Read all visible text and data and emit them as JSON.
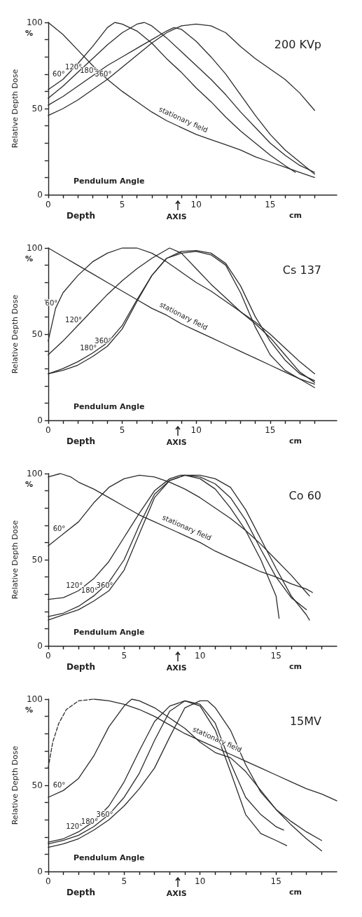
{
  "chart_data": [
    {
      "type": "line",
      "title": "200 KVp",
      "xlabel": "Depth",
      "ylabel": "Relative Depth Dose",
      "xlim": [
        0,
        19.5
      ],
      "ylim": [
        0,
        100
      ],
      "xticks": [
        0,
        {
          "value": 1,
          "label": null
        },
        {
          "value": 2,
          "label": null
        },
        {
          "value": 3,
          "label": null
        },
        {
          "value": 4,
          "label": null
        },
        5,
        {
          "value": 6,
          "label": null
        },
        {
          "value": 7,
          "label": null
        },
        {
          "value": 8,
          "label": null
        },
        {
          "value": 9,
          "label": null
        },
        10,
        {
          "value": 11,
          "label": null
        },
        {
          "value": 12,
          "label": null
        },
        {
          "value": 13,
          "label": null
        },
        {
          "value": 14,
          "label": null
        },
        15,
        {
          "value": 16,
          "label": null
        },
        {
          "value": 17,
          "label": null
        },
        {
          "value": 18,
          "label": null
        }
      ],
      "yticks": [
        0,
        {
          "value": 10,
          "label": null
        },
        {
          "value": 20,
          "label": null
        },
        {
          "value": 30,
          "label": null
        },
        {
          "value": 40,
          "label": null
        },
        50,
        {
          "value": 60,
          "label": null
        },
        {
          "value": 70,
          "label": null
        },
        {
          "value": 80,
          "label": null
        },
        {
          "value": 90,
          "label": null
        },
        100
      ],
      "annotations": [
        "%",
        "Pendulum Angle",
        "cm",
        "AXIS"
      ],
      "series": [
        {
          "name": "60°",
          "color": "#2b2b2b",
          "x": [
            0,
            1,
            2,
            3,
            4,
            4.5,
            5,
            6,
            7,
            8,
            9,
            10,
            11,
            12,
            13,
            14,
            15,
            16,
            16.7
          ],
          "values": [
            61,
            67,
            76,
            86,
            97,
            100,
            99,
            95,
            88,
            79,
            71,
            62,
            54,
            45,
            37,
            30,
            23,
            17,
            13
          ]
        },
        {
          "name": "120°",
          "color": "#2b2b2b",
          "x": [
            0,
            1,
            2,
            3,
            4,
            5,
            6,
            6.5,
            7,
            8,
            9,
            10,
            11,
            12,
            13,
            14,
            15,
            16,
            17,
            18
          ],
          "values": [
            56,
            63,
            71,
            79,
            87,
            94,
            99,
            100,
            98,
            91,
            83,
            75,
            67,
            58,
            48,
            39,
            30,
            23,
            17,
            13
          ]
        },
        {
          "name": "180°",
          "color": "#2b2b2b",
          "x": [
            0,
            1,
            2,
            3,
            4,
            5,
            6,
            7,
            8,
            8.5,
            9,
            10,
            11,
            12,
            13,
            14,
            15,
            16,
            17,
            18
          ],
          "values": [
            52,
            57,
            63,
            69,
            75,
            80,
            85,
            90,
            95,
            97,
            96,
            89,
            80,
            70,
            58,
            46,
            35,
            26,
            19,
            12
          ]
        },
        {
          "name": "360°",
          "color": "#2b2b2b",
          "x": [
            0,
            1,
            2,
            3,
            4,
            5,
            6,
            7,
            8,
            9,
            10,
            11,
            12,
            13,
            14,
            15,
            16,
            17,
            18
          ],
          "values": [
            46,
            50,
            55,
            61,
            67,
            74,
            81,
            88,
            94,
            98,
            99,
            98,
            94,
            86,
            79,
            73,
            67,
            59,
            49
          ]
        },
        {
          "name": "stationary field",
          "color": "#2b2b2b",
          "x": [
            0,
            1,
            2,
            3,
            4,
            5,
            6,
            7,
            8,
            9,
            10,
            11,
            12,
            13,
            14,
            15,
            16,
            17,
            18
          ],
          "values": [
            100,
            93,
            84,
            75,
            67,
            60,
            54,
            48,
            43,
            39,
            35,
            32,
            29,
            26,
            22,
            19,
            16,
            13,
            10
          ]
        }
      ]
    },
    {
      "type": "line",
      "title": "Cs 137",
      "xlabel": "Depth",
      "ylabel": "Relative Depth Dose",
      "xlim": [
        0,
        19.5
      ],
      "ylim": [
        0,
        100
      ],
      "xticks": [
        0,
        {
          "value": 1,
          "label": null
        },
        {
          "value": 2,
          "label": null
        },
        {
          "value": 3,
          "label": null
        },
        {
          "value": 4,
          "label": null
        },
        5,
        {
          "value": 6,
          "label": null
        },
        {
          "value": 7,
          "label": null
        },
        {
          "value": 8,
          "label": null
        },
        {
          "value": 9,
          "label": null
        },
        10,
        {
          "value": 11,
          "label": null
        },
        {
          "value": 12,
          "label": null
        },
        {
          "value": 13,
          "label": null
        },
        {
          "value": 14,
          "label": null
        },
        15,
        {
          "value": 16,
          "label": null
        },
        {
          "value": 17,
          "label": null
        },
        {
          "value": 18,
          "label": null
        }
      ],
      "yticks": [
        0,
        {
          "value": 10,
          "label": null
        },
        {
          "value": 20,
          "label": null
        },
        {
          "value": 30,
          "label": null
        },
        {
          "value": 40,
          "label": null
        },
        50,
        {
          "value": 60,
          "label": null
        },
        {
          "value": 70,
          "label": null
        },
        {
          "value": 80,
          "label": null
        },
        {
          "value": 90,
          "label": null
        },
        100
      ],
      "annotations": [
        "%",
        "Pendulum Angle",
        "cm",
        "AXIS"
      ],
      "series": [
        {
          "name": "60°",
          "color": "#2b2b2b",
          "x": [
            0,
            0.5,
            1,
            2,
            3,
            4,
            5,
            6,
            7,
            8,
            9,
            10,
            11,
            12,
            13,
            14,
            15,
            16,
            17,
            18
          ],
          "values": [
            46,
            65,
            74,
            84,
            92,
            97,
            100,
            100,
            97,
            92,
            86,
            80,
            75,
            69,
            63,
            57,
            50,
            42,
            34,
            27
          ]
        },
        {
          "name": "120°",
          "color": "#2b2b2b",
          "x": [
            0,
            1,
            2,
            3,
            4,
            5,
            6,
            7,
            8,
            8.2,
            9,
            10,
            11,
            12,
            13,
            14,
            15,
            16,
            17,
            18
          ],
          "values": [
            38,
            46,
            55,
            64,
            73,
            81,
            88,
            94,
            99,
            100,
            97,
            88,
            79,
            71,
            63,
            56,
            48,
            38,
            28,
            22
          ]
        },
        {
          "name": "180°",
          "color": "#2b2b2b",
          "x": [
            0,
            1,
            2,
            3,
            4,
            5,
            6,
            7,
            8,
            9,
            10,
            11,
            12,
            13,
            14,
            15,
            16,
            17,
            18
          ],
          "values": [
            27,
            30,
            34,
            39,
            45,
            55,
            70,
            84,
            94,
            98,
            98.5,
            97,
            91,
            78,
            60,
            46,
            35,
            27,
            23
          ]
        },
        {
          "name": "360°",
          "color": "#2b2b2b",
          "x": [
            0,
            1,
            2,
            3,
            4,
            5,
            6,
            7,
            8,
            9,
            10,
            11,
            12,
            13,
            14,
            15,
            16,
            17,
            18
          ],
          "values": [
            27,
            29,
            32,
            37,
            43,
            53,
            69,
            84,
            94,
            97,
            98,
            96,
            90,
            74,
            54,
            38,
            29,
            24,
            21
          ]
        },
        {
          "name": "stationary field",
          "color": "#2b2b2b",
          "x": [
            0,
            1,
            2,
            3,
            4,
            5,
            6,
            7,
            8,
            9,
            10,
            11,
            12,
            13,
            14,
            15,
            16,
            17,
            18
          ],
          "values": [
            100,
            95,
            90,
            85,
            80,
            75,
            70,
            65,
            61,
            56,
            52,
            48,
            44,
            40,
            36,
            32,
            28,
            24,
            19
          ]
        }
      ]
    },
    {
      "type": "line",
      "title": "Co 60",
      "xlabel": "Depth",
      "ylabel": "Relative Depth Dose",
      "xlim": [
        0,
        19
      ],
      "ylim": [
        0,
        100
      ],
      "xticks": [
        0,
        {
          "value": 1,
          "label": null
        },
        {
          "value": 2,
          "label": null
        },
        {
          "value": 3,
          "label": null
        },
        {
          "value": 4,
          "label": null
        },
        5,
        {
          "value": 6,
          "label": null
        },
        {
          "value": 7,
          "label": null
        },
        {
          "value": 8,
          "label": null
        },
        {
          "value": 9,
          "label": null
        },
        10,
        {
          "value": 11,
          "label": null
        },
        {
          "value": 12,
          "label": null
        },
        {
          "value": 13,
          "label": null
        },
        {
          "value": 14,
          "label": null
        },
        15,
        {
          "value": 16,
          "label": null
        },
        {
          "value": 17,
          "label": null
        },
        {
          "value": 18,
          "label": null
        }
      ],
      "yticks": [
        0,
        {
          "value": 10,
          "label": null
        },
        {
          "value": 20,
          "label": null
        },
        {
          "value": 30,
          "label": null
        },
        {
          "value": 40,
          "label": null
        },
        50,
        {
          "value": 60,
          "label": null
        },
        {
          "value": 70,
          "label": null
        },
        {
          "value": 80,
          "label": null
        },
        {
          "value": 90,
          "label": null
        },
        100
      ],
      "annotations": [
        "%",
        "Pendulum Angle",
        "cm",
        "AXIS"
      ],
      "series": [
        {
          "name": "60°",
          "color": "#2b2b2b",
          "x": [
            0,
            1,
            2,
            3,
            4,
            5,
            6,
            7,
            8,
            9,
            10,
            11,
            12,
            13,
            14,
            15,
            16,
            17,
            17.2
          ],
          "values": [
            58,
            65,
            72,
            83,
            92,
            97,
            99,
            98,
            95,
            91,
            86,
            80,
            74,
            67,
            59,
            50,
            41,
            31,
            29
          ]
        },
        {
          "name": "120°",
          "color": "#2b2b2b",
          "x": [
            0,
            1,
            2,
            3,
            4,
            5,
            6,
            7,
            8,
            8.7,
            9,
            10,
            11,
            12,
            13,
            14,
            15,
            15.2
          ],
          "values": [
            27,
            28,
            32,
            39,
            49,
            63,
            77,
            90,
            97,
            99,
            99,
            97,
            91,
            80,
            67,
            50,
            29,
            16
          ]
        },
        {
          "name": "180°",
          "color": "#2b2b2b",
          "x": [
            0,
            1,
            2,
            3,
            4,
            5,
            6,
            7,
            8,
            9,
            10,
            11,
            12,
            13,
            14,
            15,
            16,
            17
          ],
          "values": [
            17,
            19,
            23,
            29,
            37,
            50,
            70,
            88,
            96,
            99,
            98,
            94,
            86,
            73,
            56,
            40,
            28,
            21
          ]
        },
        {
          "name": "360°",
          "color": "#2b2b2b",
          "x": [
            0,
            1,
            2,
            3,
            4,
            5,
            6,
            7,
            8,
            9,
            10,
            11,
            12,
            13,
            14,
            15,
            16,
            17,
            17.2
          ],
          "values": [
            15,
            18,
            21,
            26,
            32,
            44,
            65,
            86,
            96,
            99,
            99,
            97,
            92,
            79,
            62,
            45,
            29,
            18,
            15
          ]
        },
        {
          "name": "stationary field",
          "color": "#2b2b2b",
          "x": [
            0,
            0.8,
            1.5,
            2,
            3,
            4,
            5,
            6,
            7,
            8,
            9,
            10,
            11,
            12,
            13,
            14,
            15,
            16,
            17,
            17.4
          ],
          "values": [
            98,
            100,
            98,
            95,
            91,
            86,
            81,
            76,
            72,
            68,
            64,
            60,
            55,
            51,
            47,
            43,
            40,
            36,
            33,
            31
          ]
        }
      ]
    },
    {
      "type": "line",
      "title": "15MV",
      "xlabel": "Depth",
      "ylabel": "Relative Depth Dose",
      "xlim": [
        0,
        19
      ],
      "ylim": [
        0,
        100
      ],
      "xticks": [
        0,
        {
          "value": 1,
          "label": null
        },
        {
          "value": 2,
          "label": null
        },
        {
          "value": 3,
          "label": null
        },
        {
          "value": 4,
          "label": null
        },
        5,
        {
          "value": 6,
          "label": null
        },
        {
          "value": 7,
          "label": null
        },
        {
          "value": 8,
          "label": null
        },
        {
          "value": 9,
          "label": null
        },
        10,
        {
          "value": 11,
          "label": null
        },
        {
          "value": 12,
          "label": null
        },
        {
          "value": 13,
          "label": null
        },
        {
          "value": 14,
          "label": null
        },
        15,
        {
          "value": 16,
          "label": null
        },
        {
          "value": 17,
          "label": null
        },
        {
          "value": 18,
          "label": null
        }
      ],
      "yticks": [
        0,
        {
          "value": 10,
          "label": null
        },
        {
          "value": 20,
          "label": null
        },
        {
          "value": 30,
          "label": null
        },
        {
          "value": 40,
          "label": null
        },
        50,
        {
          "value": 60,
          "label": null
        },
        {
          "value": 70,
          "label": null
        },
        {
          "value": 80,
          "label": null
        },
        {
          "value": 90,
          "label": null
        },
        100
      ],
      "annotations": [
        "%",
        "Pendulum Angle",
        "cm",
        "AXIS"
      ],
      "series": [
        {
          "name": "60°",
          "color": "#2b2b2b",
          "x": [
            0,
            1,
            2,
            3,
            4,
            5,
            5.5,
            6,
            7,
            8,
            9,
            10,
            11,
            12,
            13,
            14,
            15,
            16,
            17,
            18
          ],
          "values": [
            43,
            47,
            54,
            67,
            84,
            96,
            100,
            99,
            95,
            89,
            83,
            75,
            69,
            66,
            58,
            47,
            36,
            27,
            19,
            12
          ]
        },
        {
          "name": "120°",
          "color": "#2b2b2b",
          "x": [
            0,
            1,
            2,
            3,
            4,
            5,
            6,
            7,
            8,
            9,
            10,
            11,
            12,
            13,
            14,
            15,
            15.5
          ],
          "values": [
            17,
            19,
            23,
            29,
            38,
            52,
            70,
            87,
            96,
            99,
            97,
            86,
            63,
            43,
            33,
            26,
            24
          ]
        },
        {
          "name": "180°",
          "color": "#2b2b2b",
          "x": [
            0,
            1,
            2,
            3,
            4,
            5,
            6,
            7,
            8,
            9,
            10,
            11,
            12,
            13,
            14,
            15,
            15.7
          ],
          "values": [
            16,
            18,
            21,
            26,
            33,
            43,
            57,
            76,
            93,
            99,
            96,
            82,
            58,
            33,
            22,
            18,
            15
          ]
        },
        {
          "name": "360°",
          "color": "#2b2b2b",
          "x": [
            0,
            1,
            2,
            3,
            4,
            5,
            6,
            7,
            8,
            9,
            10,
            10.5,
            11,
            12,
            13,
            14,
            15,
            16,
            17,
            18
          ],
          "values": [
            14,
            16,
            19,
            24,
            30,
            38,
            48,
            60,
            78,
            95,
            99,
            99,
            95,
            82,
            62,
            46,
            36,
            29,
            23,
            18
          ]
        },
        {
          "name": "stationary field",
          "color": "#2b2b2b",
          "x": [
            3,
            4,
            5,
            6,
            7,
            8,
            9,
            10,
            11,
            12,
            13,
            14,
            15,
            16,
            17,
            18,
            19
          ],
          "values": [
            100,
            99,
            97,
            94,
            90,
            85,
            80,
            76,
            72,
            68,
            64,
            60,
            56,
            52,
            48,
            45,
            41
          ]
        },
        {
          "color": "#2b2b2b",
          "line_style": "dashed",
          "x": [
            0,
            0.3,
            0.7,
            1.2,
            2,
            3
          ],
          "values": [
            60,
            75,
            86,
            94,
            99,
            100
          ]
        }
      ]
    }
  ]
}
